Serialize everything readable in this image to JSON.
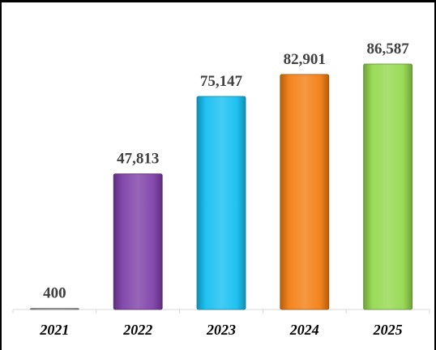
{
  "chart_data": {
    "type": "bar",
    "categories": [
      "2021",
      "2022",
      "2023",
      "2024",
      "2025"
    ],
    "values": [
      400,
      47813,
      75147,
      82901,
      86587
    ],
    "value_labels": [
      "400",
      "47,813",
      "75,147",
      "82,901",
      "86,587"
    ],
    "colors": [
      "#9e9e9e",
      "#7e3fa8",
      "#14bff1",
      "#f27d12",
      "#94d84e"
    ],
    "title": "",
    "xlabel": "",
    "ylabel": "",
    "ylim": [
      0,
      100000
    ],
    "grid": false,
    "legend": "none"
  }
}
